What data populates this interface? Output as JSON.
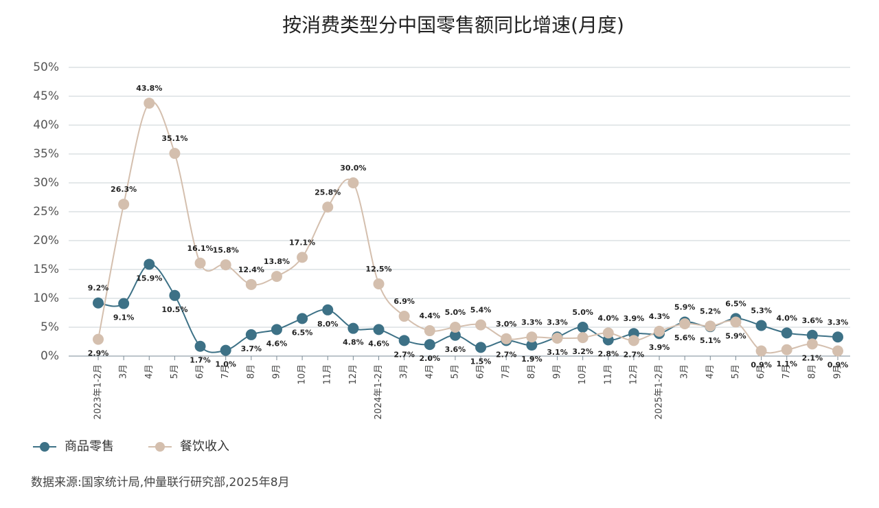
{
  "chart_data": {
    "type": "line",
    "title": "按消费类型分中国零售额同比增速(月度)",
    "categories": [
      "2023年1-2月",
      "3月",
      "4月",
      "5月",
      "6月",
      "7月",
      "8月",
      "9月",
      "10月",
      "11月",
      "12月",
      "2024年1-2月",
      "3月",
      "4月",
      "5月",
      "6月",
      "7月",
      "8月",
      "9月",
      "10月",
      "11月",
      "12月",
      "2025年1-2月",
      "3月",
      "4月",
      "5月",
      "6月",
      "7月",
      "8月",
      "9月"
    ],
    "series": [
      {
        "name": "商品零售",
        "color": "#3d7186",
        "values": [
          9.2,
          9.1,
          15.9,
          10.5,
          1.7,
          1.0,
          3.7,
          4.6,
          6.5,
          8.0,
          4.8,
          4.6,
          2.7,
          2.0,
          3.6,
          1.5,
          2.7,
          1.9,
          3.3,
          5.0,
          2.8,
          3.9,
          3.9,
          5.9,
          5.1,
          6.5,
          5.3,
          4.0,
          3.6,
          3.3
        ],
        "value_labels": [
          "9.2%",
          "9.1%",
          "15.9%",
          "10.5%",
          "1.7%",
          "1.0%",
          "3.7%",
          "4.6%",
          "6.5%",
          "8.0%",
          "4.8%",
          "4.6%",
          "2.7%",
          "2.0%",
          "3.6%",
          "1.5%",
          "2.7%",
          "1.9%",
          "3.3%",
          "5.0%",
          "2.8%",
          "3.9%",
          "3.9%",
          "5.9%",
          "5.1%",
          "6.5%",
          "5.3%",
          "4.0%",
          "3.6%",
          "3.3%"
        ]
      },
      {
        "name": "餐饮收入",
        "color": "#d4bfae",
        "values": [
          2.9,
          26.3,
          43.8,
          35.1,
          16.1,
          15.8,
          12.4,
          13.8,
          17.1,
          25.8,
          30.0,
          12.5,
          6.9,
          4.4,
          5.0,
          5.4,
          3.0,
          3.3,
          3.1,
          3.2,
          4.0,
          2.7,
          4.3,
          5.6,
          5.2,
          5.9,
          0.9,
          1.1,
          2.1,
          0.9
        ],
        "value_labels": [
          "2.9%",
          "26.3%",
          "43.8%",
          "35.1%",
          "16.1%",
          "15.8%",
          "12.4%",
          "13.8%",
          "17.1%",
          "25.8%",
          "30.0%",
          "12.5%",
          "6.9%",
          "4.4%",
          "5.0%",
          "5.4%",
          "3.0%",
          "3.3%",
          "3.1%",
          "3.2%",
          "4.0%",
          "2.7%",
          "4.3%",
          "5.6%",
          "5.2%",
          "5.9%",
          "0.9%",
          "1.1%",
          "2.1%",
          "0.9%"
        ]
      }
    ],
    "ylim": [
      0,
      50
    ],
    "yticks": [
      {
        "value": 0,
        "label": "0%"
      },
      {
        "value": 5,
        "label": "5%"
      },
      {
        "value": 10,
        "label": "10%"
      },
      {
        "value": 15,
        "label": "15%"
      },
      {
        "value": 20,
        "label": "20%"
      },
      {
        "value": 25,
        "label": "25%"
      },
      {
        "value": 30,
        "label": "30%"
      },
      {
        "value": 35,
        "label": "35%"
      },
      {
        "value": 40,
        "label": "40%"
      },
      {
        "value": 45,
        "label": "45%"
      },
      {
        "value": 50,
        "label": "50%"
      }
    ],
    "grid": true,
    "legend": "bottom-left",
    "source": "数据来源:国家统计局,仲量联行研究部,2025年8月"
  }
}
